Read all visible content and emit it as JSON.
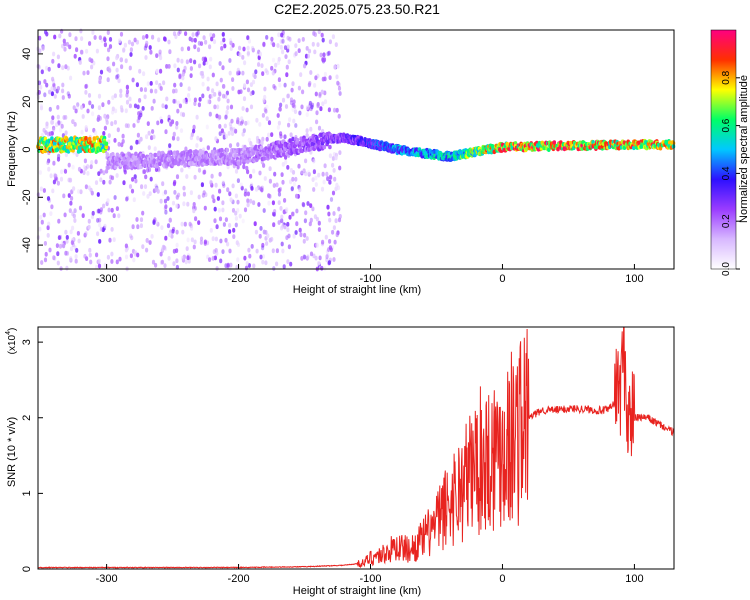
{
  "title": "C2E2.2025.075.23.50.R21",
  "colors": {
    "snr_line": "#e8231f",
    "colormap": [
      "#ffffff",
      "#d8b8ff",
      "#9a3cff",
      "#2d10ff",
      "#00c8ff",
      "#00ff66",
      "#ffff00",
      "#ff3000",
      "#ff0080"
    ]
  },
  "chart_data": [
    {
      "type": "heatmap",
      "title": "",
      "xlabel": "Height of straight line (km)",
      "ylabel": "Frequency (Hz)",
      "xlim": [
        -352,
        130
      ],
      "ylim": [
        -50,
        50
      ],
      "x_ticks": [
        "-300",
        "-200",
        "-100",
        "0",
        "100"
      ],
      "y_ticks": [
        "-40",
        "-20",
        "0",
        "20",
        "40"
      ],
      "colorbar": {
        "label": "Normalized spectral amplitude",
        "range": [
          0,
          1
        ],
        "ticks": [
          "0.0",
          "0.2",
          "0.4",
          "0.6",
          "0.8"
        ]
      },
      "description_points": [
        {
          "x": -300,
          "f": -5,
          "amp": 0.2
        },
        {
          "x": -200,
          "f": -3,
          "amp": 0.2
        },
        {
          "x": -120,
          "f": 5,
          "amp": 0.3
        },
        {
          "x": -80,
          "f": 0,
          "amp": 0.5
        },
        {
          "x": -40,
          "f": -3,
          "amp": 0.6
        },
        {
          "x": 0,
          "f": 1,
          "amp": 0.9
        },
        {
          "x": 90,
          "f": 2,
          "amp": 0.9
        },
        {
          "x": 128,
          "f": 2,
          "amp": 0.8
        }
      ]
    },
    {
      "type": "line",
      "title": "",
      "xlabel": "Height of straight line (km)",
      "ylabel": "SNR (10 * v/v)",
      "scale_label": "(x10",
      "scale_exponent": "4",
      "xlim": [
        -352,
        130
      ],
      "ylim": [
        0,
        3.2
      ],
      "x_ticks": [
        "-300",
        "-200",
        "-100",
        "0",
        "100"
      ],
      "y_ticks": [
        "0",
        "1",
        "2",
        "3"
      ],
      "series": [
        {
          "x": [
            -352,
            -300,
            -200,
            -150,
            -120,
            -105,
            -100,
            -90,
            -80,
            -70,
            -60,
            -50,
            -40,
            -30,
            -20,
            -10,
            0,
            10,
            20,
            30,
            40,
            50,
            60,
            70,
            80,
            85,
            90,
            92,
            95,
            100,
            110,
            120,
            130
          ],
          "values": [
            0.02,
            0.02,
            0.02,
            0.03,
            0.05,
            0.08,
            0.15,
            0.2,
            0.3,
            0.25,
            0.4,
            0.6,
            0.9,
            1.1,
            1.4,
            1.5,
            1.65,
            1.8,
            2.0,
            2.1,
            2.1,
            2.12,
            2.12,
            2.1,
            2.1,
            2.2,
            2.5,
            2.9,
            2.0,
            2.0,
            2.0,
            1.9,
            1.8
          ]
        }
      ]
    }
  ]
}
